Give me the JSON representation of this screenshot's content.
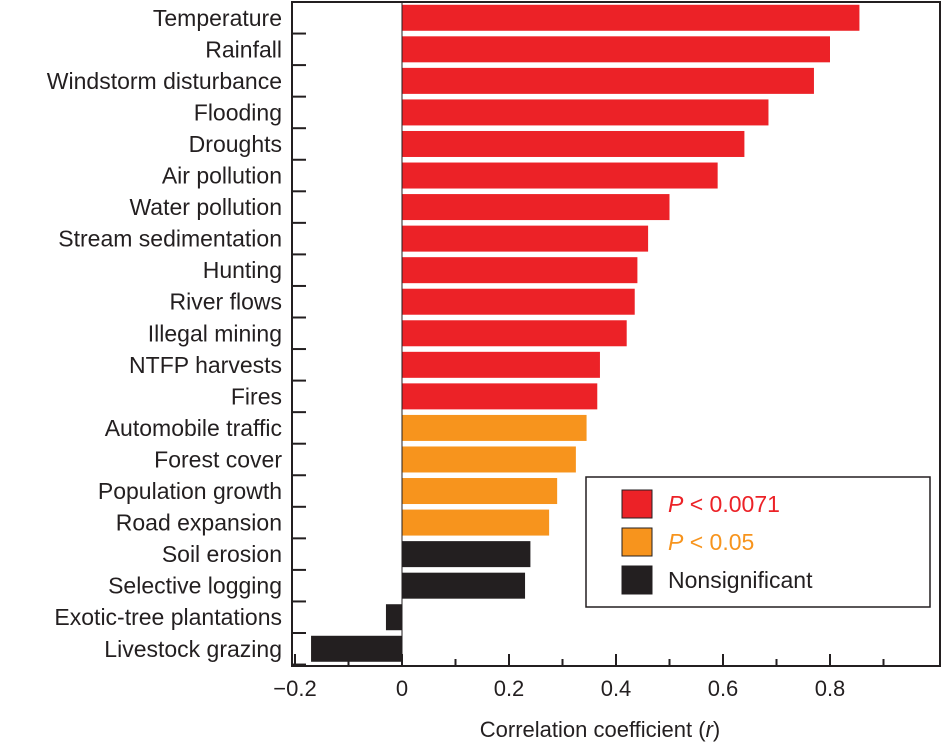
{
  "colors": {
    "significant_0_0071": "#ec2227",
    "significant_0_05": "#f7941d",
    "nonsignificant": "#231f20",
    "axis": "#231f20"
  },
  "chart_data": {
    "type": "bar",
    "orientation": "horizontal",
    "title": "",
    "xlabel_prefix": "Correlation coefficient (",
    "xlabel_var": "r",
    "xlabel_suffix": ")",
    "ylabel": "",
    "xlim": [
      -0.2,
      1.0
    ],
    "x_ticks": [
      -0.2,
      0,
      0.2,
      0.4,
      0.6,
      0.8
    ],
    "x_tick_labels": [
      "−0.2",
      "0",
      "0.2",
      "0.4",
      "0.6",
      "0.8"
    ],
    "categories": [
      "Temperature",
      "Rainfall",
      "Windstorm disturbance",
      "Flooding",
      "Droughts",
      "Air pollution",
      "Water pollution",
      "Stream sedimentation",
      "Hunting",
      "River flows",
      "Illegal mining",
      "NTFP harvests",
      "Fires",
      "Automobile traffic",
      "Forest cover",
      "Population growth",
      "Road expansion",
      "Soil erosion",
      "Selective logging",
      "Exotic-tree plantations",
      "Livestock grazing"
    ],
    "values": [
      0.855,
      0.8,
      0.77,
      0.685,
      0.64,
      0.59,
      0.5,
      0.46,
      0.44,
      0.435,
      0.42,
      0.37,
      0.365,
      0.345,
      0.325,
      0.29,
      0.275,
      0.24,
      0.23,
      -0.03,
      -0.17
    ],
    "groups": [
      "p0071",
      "p0071",
      "p0071",
      "p0071",
      "p0071",
      "p0071",
      "p0071",
      "p0071",
      "p0071",
      "p0071",
      "p0071",
      "p0071",
      "p0071",
      "p05",
      "p05",
      "p05",
      "p05",
      "ns",
      "ns",
      "ns",
      "ns"
    ],
    "legend": {
      "position": "lower-right",
      "entries": [
        {
          "group": "p0071",
          "italic": "P",
          "rest": " < 0.0071",
          "color": "#ec2227",
          "text_color": "#ec2227"
        },
        {
          "group": "p05",
          "italic": "P",
          "rest": " < 0.05",
          "color": "#f7941d",
          "text_color": "#f7941d"
        },
        {
          "group": "ns",
          "italic": "",
          "rest": "Nonsignificant",
          "color": "#231f20",
          "text_color": "#231f20"
        }
      ]
    },
    "grid": false
  }
}
